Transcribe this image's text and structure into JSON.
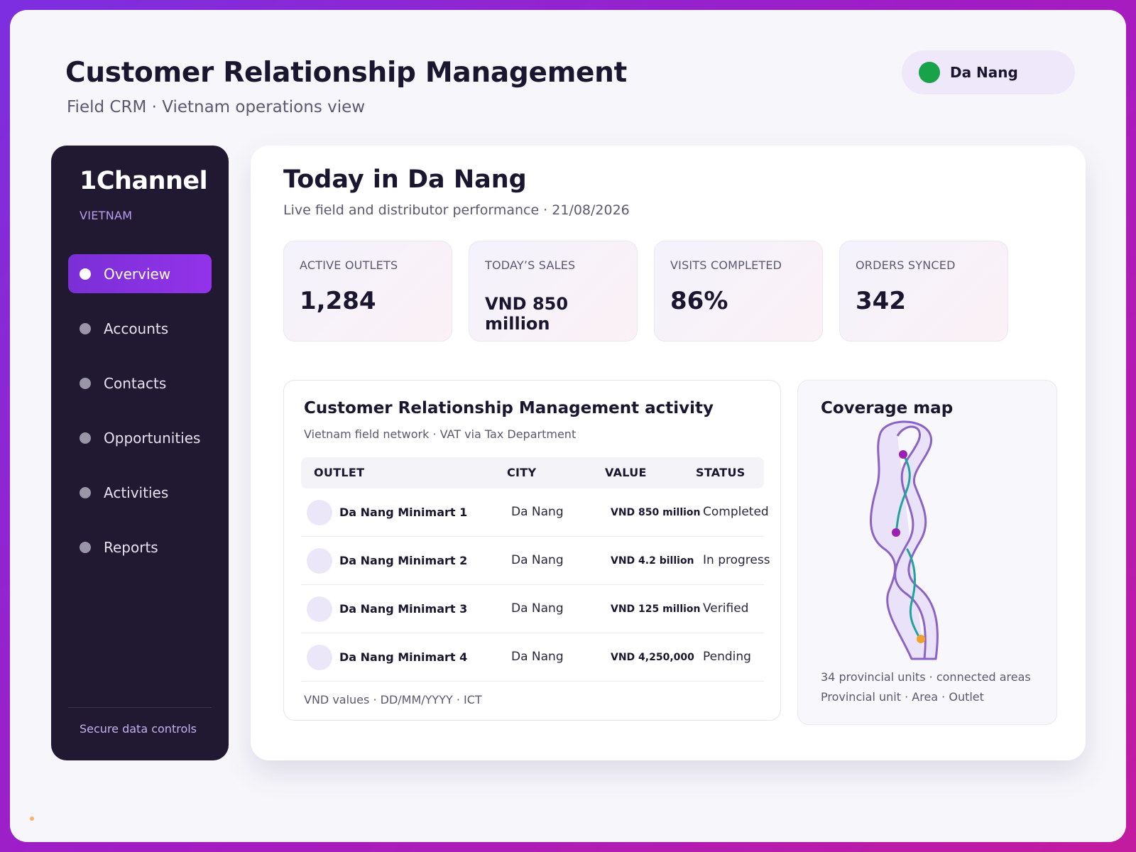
{
  "header": {
    "title": "Customer Relationship Management",
    "subtitle": "Field CRM · Vietnam operations view",
    "location": "Da Nang"
  },
  "sidebar": {
    "brand": "1Channel",
    "brand_sub": "VIETNAM",
    "items": [
      {
        "label": "Overview",
        "active": true
      },
      {
        "label": "Accounts"
      },
      {
        "label": "Contacts"
      },
      {
        "label": "Opportunities"
      },
      {
        "label": "Activities"
      },
      {
        "label": "Reports"
      }
    ],
    "footer": "Secure data controls"
  },
  "main": {
    "title": "Today in Da Nang",
    "subtitle": "Live field and distributor performance · 21/08/2026"
  },
  "kpis": [
    {
      "label": "ACTIVE OUTLETS",
      "value": "1,284"
    },
    {
      "label": "TODAY’S SALES",
      "value": "VND 850 million"
    },
    {
      "label": "VISITS COMPLETED",
      "value": "86%"
    },
    {
      "label": "ORDERS SYNCED",
      "value": "342"
    }
  ],
  "activity": {
    "title": "Customer Relationship Management activity",
    "subtitle": "Vietnam field network · VAT via Tax Department",
    "columns": [
      "OUTLET",
      "CITY",
      "VALUE",
      "STATUS"
    ],
    "rows": [
      {
        "outlet": "Da Nang Minimart 1",
        "city": "Da Nang",
        "value": "VND 850 million",
        "status": "Completed"
      },
      {
        "outlet": "Da Nang Minimart 2",
        "city": "Da Nang",
        "value": "VND 4.2 billion",
        "status": "In progress"
      },
      {
        "outlet": "Da Nang Minimart 3",
        "city": "Da Nang",
        "value": "VND 125 million",
        "status": "Verified"
      },
      {
        "outlet": "Da Nang Minimart 4",
        "city": "Da Nang",
        "value": "VND 4,250,000",
        "status": "Pending"
      }
    ],
    "footer": "VND values · DD/MM/YYYY · ICT"
  },
  "map": {
    "title": "Coverage map",
    "legend_line1": "34 provincial units · connected areas",
    "legend_line2": "Provincial unit · Area · Outlet",
    "colors": {
      "outline": "#8a63c7",
      "fill": "#e9e2f8",
      "route": "#21a39b",
      "node": "#9b1fb3",
      "outlet": "#f0a22e"
    }
  },
  "colors": {
    "accent": "#7b2fd6",
    "status_online": "#18a34a",
    "sidebar_bg": "#211932"
  }
}
